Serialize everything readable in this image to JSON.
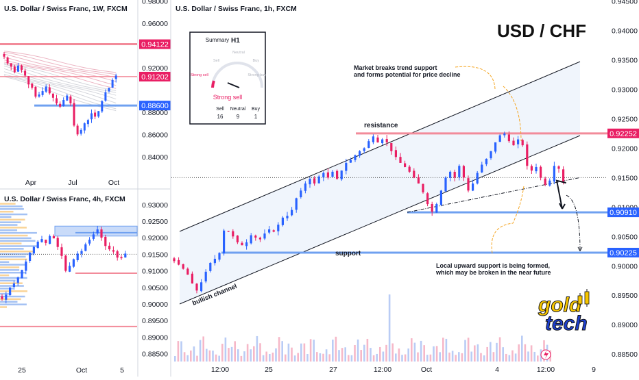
{
  "brand": {
    "pair_title": "USD / CHF",
    "logo_top": "gold",
    "logo_bottom": "tech",
    "logo_colors": {
      "yellow": "#F7C600",
      "blue": "#1E3FCC"
    }
  },
  "colors": {
    "bull": "#2962FF",
    "bear": "#E91E63",
    "resistance": "#F28B9A",
    "support": "#6FA0F0",
    "channel_fill": "#EAF1FB",
    "annotation_arrow": "#F5A623"
  },
  "summary_widget": {
    "title": "Summary",
    "timeframe": "H1",
    "gauge_labels": [
      "Strong sell",
      "Sell",
      "Neutral",
      "Buy",
      "Strong buy"
    ],
    "verdict": "Strong sell",
    "counts": [
      {
        "label": "Sell",
        "value": "16"
      },
      {
        "label": "Neutral",
        "value": "9"
      },
      {
        "label": "Buy",
        "value": "1"
      }
    ]
  },
  "chart_data": [
    {
      "type": "candlestick",
      "title": "U.S. Dollar / Swiss Franc, 1W, FXCM",
      "x_ticks": [
        "Apr",
        "Jul",
        "Oct"
      ],
      "y_ticks": [
        "0.98000",
        "0.96000",
        "0.94000",
        "0.92000",
        "0.90000",
        "0.88000",
        "0.86000",
        "0.84000"
      ],
      "ylim": [
        0.822,
        0.981
      ],
      "levels": [
        {
          "label": "0.94122",
          "value": 0.94122,
          "color": "#F28B9A"
        },
        {
          "label": "0.91202",
          "value": 0.91202,
          "color": "#F28B9A"
        },
        {
          "label": "0.88600",
          "value": 0.886,
          "color": "#6FA0F0"
        }
      ],
      "close": [
        0.93,
        0.924,
        0.921,
        0.916,
        0.922,
        0.918,
        0.913,
        0.905,
        0.902,
        0.894,
        0.896,
        0.899,
        0.903,
        0.897,
        0.893,
        0.888,
        0.885,
        0.891,
        0.895,
        0.888,
        0.868,
        0.86,
        0.864,
        0.87,
        0.873,
        0.879,
        0.876,
        0.881,
        0.89,
        0.898,
        0.902,
        0.909,
        0.913
      ]
    },
    {
      "type": "candlestick",
      "title": "U.S. Dollar / Swiss Franc, 4h, FXCM",
      "x_ticks": [
        "25",
        "Oct",
        "5"
      ],
      "y_ticks": [
        "0.93000",
        "0.92500",
        "0.92000",
        "0.91500",
        "0.91000",
        "0.90500",
        "0.90000",
        "0.89500",
        "0.89000",
        "0.88500"
      ],
      "ylim": [
        0.8818,
        0.9343
      ],
      "levels": [
        {
          "value": 0.9215,
          "color": "#6FA0F0"
        },
        {
          "value": 0.9093,
          "color": "#F28B9A"
        },
        {
          "value": 0.8932,
          "color": "#F28B9A"
        }
      ],
      "close": [
        0.9015,
        0.9028,
        0.905,
        0.9062,
        0.908,
        0.9103,
        0.9128,
        0.9155,
        0.9172,
        0.9188,
        0.9196,
        0.9184,
        0.9205,
        0.9198,
        0.9172,
        0.9145,
        0.91,
        0.9115,
        0.9135,
        0.9152,
        0.916,
        0.918,
        0.9194,
        0.921,
        0.9225,
        0.92,
        0.9175,
        0.9165,
        0.9158,
        0.914,
        0.9138,
        0.9152
      ]
    },
    {
      "type": "candlestick",
      "title": "U.S. Dollar / Swiss Franc, 1h, FXCM",
      "x_ticks": [
        "12:00",
        "25",
        "27",
        "12:00",
        "Oct",
        "4",
        "12:00",
        "9"
      ],
      "y_ticks": [
        "0.94500",
        "0.94000",
        "0.93500",
        "0.93000",
        "0.92500",
        "0.92000",
        "0.91500",
        "0.91000",
        "0.90500",
        "0.90000",
        "0.89500",
        "0.89000",
        "0.88500"
      ],
      "ylim": [
        0.8835,
        0.9452
      ],
      "levels": [
        {
          "label": "0.92252",
          "value": 0.92252,
          "color": "#F28B9A"
        },
        {
          "label": "0.90910",
          "value": 0.9091,
          "color": "#6FA0F0"
        },
        {
          "label": "0.90225",
          "value": 0.90225,
          "color": "#6FA0F0"
        }
      ],
      "current_price": 0.915,
      "projection": [
        0.9141,
        0.9097,
        0.9092,
        0.9025
      ],
      "close": [
        0.9008,
        0.9002,
        0.8995,
        0.8985,
        0.897,
        0.8958,
        0.8972,
        0.899,
        0.9005,
        0.9012,
        0.9022,
        0.906,
        0.9058,
        0.905,
        0.904,
        0.9035,
        0.904,
        0.9052,
        0.9048,
        0.9045,
        0.9055,
        0.9062,
        0.9058,
        0.907,
        0.9082,
        0.9085,
        0.9095,
        0.9115,
        0.9128,
        0.914,
        0.9148,
        0.914,
        0.9152,
        0.9158,
        0.915,
        0.916,
        0.9148,
        0.9162,
        0.9175,
        0.918,
        0.9188,
        0.9195,
        0.92,
        0.9212,
        0.922,
        0.921,
        0.9215,
        0.921,
        0.9195,
        0.9185,
        0.9175,
        0.9168,
        0.916,
        0.915,
        0.914,
        0.9125,
        0.9105,
        0.9092,
        0.9105,
        0.9128,
        0.915,
        0.916,
        0.915,
        0.917,
        0.915,
        0.9128,
        0.914,
        0.9158,
        0.9172,
        0.9182,
        0.9195,
        0.921,
        0.9222,
        0.9225,
        0.9212,
        0.9205,
        0.9215,
        0.9205,
        0.917,
        0.9162,
        0.9168,
        0.915,
        0.9138,
        0.9145,
        0.917,
        0.9165,
        0.9143
      ],
      "annotations": {
        "resistance": "resistance",
        "support": "support",
        "bullish_channel": "bullish channel",
        "trend_note": [
          "Market breaks trend support",
          "and forms potential for price decline"
        ],
        "local_note": [
          "Local upward support is being formed,",
          "which may be broken in the near future"
        ]
      }
    }
  ]
}
